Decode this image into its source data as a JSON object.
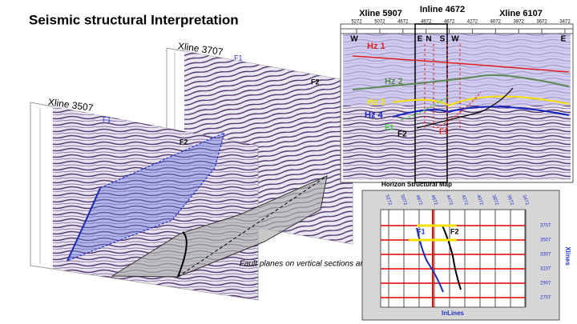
{
  "title": "Seismic structural Interpretation",
  "left_section": {
    "label": "Xline 3507",
    "fault_labels": [
      "F1",
      "F2"
    ]
  },
  "middle_section": {
    "label": "Xline 3707",
    "fault_labels": [
      "F1",
      "F2"
    ]
  },
  "caption": "Fault planes on vertical sections and on base map",
  "top_section": {
    "labels": [
      "Xline 5907",
      "Inline 4672",
      "Xline 6107"
    ],
    "ticks": [
      "5272",
      "5072",
      "4672",
      "4672",
      "4672",
      "4272",
      "4072",
      "3872",
      "3672",
      "3472"
    ],
    "directions": [
      "W",
      "E",
      "N",
      "S",
      "W",
      "E"
    ],
    "horizons": [
      "Hz 1",
      "Hz 2",
      "Hz 3",
      "Hz 4"
    ],
    "faults": [
      "F1",
      "F2",
      "F1"
    ]
  },
  "base_map": {
    "title": "Horizon Structural Map",
    "inline_ticks": [
      "5272",
      "5072",
      "4872",
      "4672",
      "4472",
      "4272",
      "4072",
      "3872",
      "3672",
      "3472"
    ],
    "xline_ticks": [
      "3707",
      "3507",
      "3307",
      "3107",
      "2907",
      "2707"
    ],
    "x_label": "InLines",
    "y_label": "Xlines",
    "faults": [
      "F1",
      "F2"
    ]
  }
}
